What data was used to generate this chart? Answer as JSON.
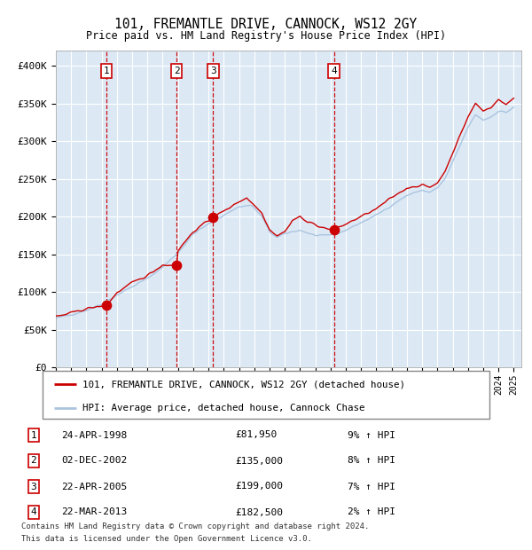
{
  "title": "101, FREMANTLE DRIVE, CANNOCK, WS12 2GY",
  "subtitle": "Price paid vs. HM Land Registry's House Price Index (HPI)",
  "ylim": [
    0,
    420000
  ],
  "yticks": [
    0,
    50000,
    100000,
    150000,
    200000,
    250000,
    300000,
    350000,
    400000
  ],
  "ytick_labels": [
    "£0",
    "£50K",
    "£100K",
    "£150K",
    "£200K",
    "£250K",
    "£300K",
    "£350K",
    "£400K"
  ],
  "x_start_year": 1995,
  "x_end_year": 2025,
  "plot_bg_color": "#dce9f5",
  "grid_color": "#ffffff",
  "sale_line_color": "#cc0000",
  "hpi_line_color": "#aac4e0",
  "sale_marker_color": "#cc0000",
  "vline_color_dash": "#cc0000",
  "sales": [
    {
      "date_num": 1998.31,
      "price": 81950,
      "label": "1"
    },
    {
      "date_num": 2002.92,
      "price": 135000,
      "label": "2"
    },
    {
      "date_num": 2005.31,
      "price": 199000,
      "label": "3"
    },
    {
      "date_num": 2013.22,
      "price": 182500,
      "label": "4"
    }
  ],
  "legend_sale_label": "101, FREMANTLE DRIVE, CANNOCK, WS12 2GY (detached house)",
  "legend_hpi_label": "HPI: Average price, detached house, Cannock Chase",
  "footer1": "Contains HM Land Registry data © Crown copyright and database right 2024.",
  "footer2": "This data is licensed under the Open Government Licence v3.0.",
  "table_rows": [
    {
      "num": "1",
      "date": "24-APR-1998",
      "price": "£81,950",
      "pct": "9% ↑ HPI"
    },
    {
      "num": "2",
      "date": "02-DEC-2002",
      "price": "£135,000",
      "pct": "8% ↑ HPI"
    },
    {
      "num": "3",
      "date": "22-APR-2005",
      "price": "£199,000",
      "pct": "7% ↑ HPI"
    },
    {
      "num": "4",
      "date": "22-MAR-2013",
      "price": "£182,500",
      "pct": "2% ↑ HPI"
    }
  ],
  "waypoints_hpi": [
    [
      1995.0,
      65000
    ],
    [
      1996.0,
      70000
    ],
    [
      1997.0,
      76000
    ],
    [
      1998.0,
      84000
    ],
    [
      1999.0,
      96000
    ],
    [
      2000.0,
      107000
    ],
    [
      2001.0,
      118000
    ],
    [
      2002.0,
      133000
    ],
    [
      2003.0,
      152000
    ],
    [
      2004.0,
      177000
    ],
    [
      2005.0,
      190000
    ],
    [
      2006.0,
      202000
    ],
    [
      2007.0,
      213000
    ],
    [
      2007.8,
      215000
    ],
    [
      2008.5,
      200000
    ],
    [
      2009.0,
      180000
    ],
    [
      2009.5,
      172000
    ],
    [
      2010.0,
      177000
    ],
    [
      2010.5,
      180000
    ],
    [
      2011.0,
      182000
    ],
    [
      2011.5,
      178000
    ],
    [
      2012.0,
      175000
    ],
    [
      2012.5,
      174000
    ],
    [
      2013.0,
      176000
    ],
    [
      2013.5,
      178000
    ],
    [
      2014.0,
      182000
    ],
    [
      2015.0,
      192000
    ],
    [
      2016.0,
      202000
    ],
    [
      2017.0,
      215000
    ],
    [
      2018.0,
      228000
    ],
    [
      2019.0,
      235000
    ],
    [
      2019.5,
      232000
    ],
    [
      2020.0,
      238000
    ],
    [
      2020.5,
      250000
    ],
    [
      2021.0,
      272000
    ],
    [
      2021.5,
      295000
    ],
    [
      2022.0,
      318000
    ],
    [
      2022.5,
      335000
    ],
    [
      2023.0,
      328000
    ],
    [
      2023.5,
      332000
    ],
    [
      2024.0,
      340000
    ],
    [
      2024.5,
      338000
    ],
    [
      2025.0,
      345000
    ]
  ],
  "waypoints_sale": [
    [
      1995.0,
      67000
    ],
    [
      1996.0,
      72000
    ],
    [
      1997.0,
      78000
    ],
    [
      1998.31,
      81950
    ],
    [
      1999.0,
      99000
    ],
    [
      2000.0,
      112000
    ],
    [
      2001.0,
      122000
    ],
    [
      2002.0,
      136000
    ],
    [
      2002.92,
      135000
    ],
    [
      2003.0,
      155000
    ],
    [
      2004.0,
      180000
    ],
    [
      2005.31,
      199000
    ],
    [
      2006.0,
      207000
    ],
    [
      2007.0,
      220000
    ],
    [
      2007.5,
      225000
    ],
    [
      2008.5,
      205000
    ],
    [
      2009.0,
      183000
    ],
    [
      2009.5,
      175000
    ],
    [
      2010.0,
      180000
    ],
    [
      2010.5,
      195000
    ],
    [
      2011.0,
      200000
    ],
    [
      2011.5,
      192000
    ],
    [
      2012.0,
      190000
    ],
    [
      2012.5,
      185000
    ],
    [
      2013.22,
      182500
    ],
    [
      2013.5,
      185000
    ],
    [
      2014.0,
      190000
    ],
    [
      2015.0,
      200000
    ],
    [
      2016.0,
      210000
    ],
    [
      2017.0,
      225000
    ],
    [
      2018.0,
      238000
    ],
    [
      2019.0,
      242000
    ],
    [
      2019.5,
      238000
    ],
    [
      2020.0,
      245000
    ],
    [
      2020.5,
      260000
    ],
    [
      2021.0,
      285000
    ],
    [
      2021.5,
      308000
    ],
    [
      2022.0,
      332000
    ],
    [
      2022.5,
      350000
    ],
    [
      2023.0,
      340000
    ],
    [
      2023.5,
      345000
    ],
    [
      2024.0,
      355000
    ],
    [
      2024.5,
      348000
    ],
    [
      2025.0,
      358000
    ]
  ]
}
